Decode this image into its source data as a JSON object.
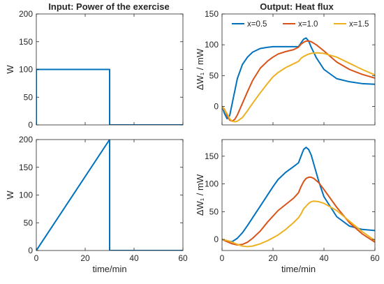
{
  "figure": {
    "left_title": "Input: Power of the exercise",
    "right_title": "Output: Heat flux"
  },
  "colors": {
    "blue": "#0072BD",
    "orange": "#D95319",
    "yellow": "#EDB120",
    "axis": "#262626",
    "text": "#262626"
  },
  "chart_data": [
    {
      "type": "line",
      "xlabel": "",
      "ylabel": "W",
      "xlim": [
        0,
        60
      ],
      "ylim": [
        0,
        200
      ],
      "xticks": [],
      "yticks": [
        0,
        50,
        100,
        150,
        200
      ],
      "series": [
        {
          "color": "#0072BD",
          "x": [
            0,
            0,
            30,
            30,
            60
          ],
          "y": [
            0,
            100,
            100,
            0,
            0
          ]
        }
      ]
    },
    {
      "type": "line",
      "title": "",
      "xlabel": "",
      "ylabel": "ΔW₁ / mW",
      "xlim": [
        0,
        60
      ],
      "ylim": [
        -30,
        150
      ],
      "xticks": [],
      "yticks": [
        0,
        50,
        100,
        150
      ],
      "legend": {
        "position": "top",
        "orientation": "horizontal"
      },
      "series": [
        {
          "name": "x=0.5",
          "color": "#0072BD",
          "x": [
            0,
            1,
            2,
            3,
            4,
            5,
            6,
            8,
            10,
            12,
            15,
            18,
            20,
            22,
            25,
            28,
            30,
            31,
            32,
            33,
            34,
            35,
            37,
            40,
            45,
            50,
            55,
            60
          ],
          "y": [
            0,
            -12,
            -20,
            -15,
            5,
            25,
            45,
            68,
            80,
            88,
            94,
            96,
            97,
            97,
            97,
            97,
            97,
            103,
            109,
            111,
            106,
            96,
            79,
            60,
            45,
            40,
            37,
            36
          ]
        },
        {
          "name": "x=1.0",
          "color": "#D95319",
          "x": [
            0,
            1,
            2,
            3,
            4,
            5,
            6,
            8,
            10,
            12,
            15,
            18,
            20,
            22,
            25,
            28,
            30,
            31,
            32,
            33,
            34,
            35,
            37,
            40,
            45,
            50,
            55,
            60
          ],
          "y": [
            0,
            -5,
            -15,
            -22,
            -24,
            -21,
            -14,
            5,
            24,
            42,
            62,
            74,
            80,
            85,
            89,
            92,
            96,
            101,
            104,
            106,
            106,
            105,
            100,
            90,
            72,
            60,
            52,
            46
          ]
        },
        {
          "name": "x=1.5",
          "color": "#EDB120",
          "x": [
            0,
            1,
            2,
            3,
            4,
            5,
            6,
            8,
            10,
            12,
            15,
            18,
            20,
            22,
            25,
            28,
            30,
            31,
            32,
            33,
            34,
            35,
            37,
            40,
            45,
            50,
            55,
            60
          ],
          "y": [
            0,
            -6,
            -12,
            -20,
            -24,
            -25,
            -24,
            -18,
            -7,
            5,
            22,
            38,
            48,
            55,
            63,
            69,
            73,
            78,
            81,
            83,
            85,
            86,
            87,
            86,
            80,
            70,
            60,
            51
          ]
        }
      ]
    },
    {
      "type": "line",
      "xlabel": "time/min",
      "ylabel": "W",
      "xlim": [
        0,
        60
      ],
      "ylim": [
        0,
        200
      ],
      "xticks": [
        0,
        20,
        40,
        60
      ],
      "yticks": [
        0,
        50,
        100,
        150,
        200
      ],
      "series": [
        {
          "color": "#0072BD",
          "x": [
            0,
            30,
            30,
            60
          ],
          "y": [
            0,
            200,
            0,
            0
          ]
        }
      ]
    },
    {
      "type": "line",
      "xlabel": "time/min",
      "ylabel": "ΔW₁ / mW",
      "xlim": [
        0,
        60
      ],
      "ylim": [
        -20,
        180
      ],
      "xticks": [
        0,
        20,
        40,
        60
      ],
      "yticks": [
        0,
        50,
        100,
        150
      ],
      "series": [
        {
          "name": "x=0.5",
          "color": "#0072BD",
          "x": [
            0,
            2,
            4,
            6,
            8,
            10,
            12,
            15,
            18,
            20,
            22,
            25,
            28,
            30,
            31,
            32,
            33,
            34,
            35,
            36,
            38,
            40,
            45,
            50,
            55,
            60
          ],
          "y": [
            0,
            -3,
            -4,
            2,
            12,
            25,
            39,
            60,
            81,
            95,
            108,
            121,
            131,
            138,
            150,
            162,
            166,
            162,
            152,
            136,
            104,
            77,
            41,
            24,
            18,
            16
          ]
        },
        {
          "name": "x=1.0",
          "color": "#D95319",
          "x": [
            0,
            2,
            4,
            6,
            8,
            10,
            12,
            15,
            18,
            20,
            22,
            25,
            28,
            30,
            31,
            32,
            33,
            34,
            35,
            36,
            38,
            40,
            45,
            50,
            55,
            60
          ],
          "y": [
            0,
            -4,
            -8,
            -10,
            -9,
            -5,
            2,
            15,
            32,
            42,
            52,
            63,
            74,
            84,
            95,
            104,
            110,
            112,
            112,
            110,
            102,
            90,
            58,
            30,
            10,
            -5
          ]
        },
        {
          "name": "x=1.5",
          "color": "#EDB120",
          "x": [
            0,
            2,
            4,
            6,
            8,
            10,
            12,
            15,
            18,
            20,
            22,
            25,
            28,
            30,
            31,
            32,
            33,
            34,
            35,
            36,
            38,
            40,
            45,
            50,
            55,
            60
          ],
          "y": [
            0,
            -2,
            -5,
            -9,
            -12,
            -13,
            -12,
            -8,
            -2,
            3,
            8,
            18,
            30,
            39,
            46,
            55,
            60,
            65,
            68,
            69,
            68,
            65,
            52,
            33,
            14,
            -2
          ]
        }
      ]
    }
  ]
}
